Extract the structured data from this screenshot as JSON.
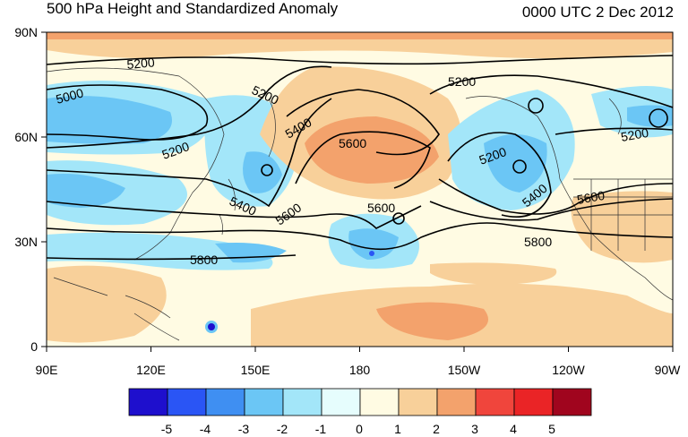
{
  "header": {
    "title": "500 hPa Height and Standardized Anomaly",
    "datetime": "0000 UTC 2 Dec 2012"
  },
  "axes": {
    "lat_ticks": [
      "90N",
      "60N",
      "30N",
      "0"
    ],
    "lon_ticks": [
      "90E",
      "120E",
      "150E",
      "180",
      "150W",
      "120W",
      "90W"
    ]
  },
  "contour_labels": [
    "5200",
    "5000",
    "5200",
    "5200",
    "5400",
    "5600",
    "5400",
    "5600",
    "5600",
    "5800",
    "5200",
    "5200",
    "5400",
    "5600",
    "5800"
  ],
  "colorbar": {
    "labels": [
      "-5",
      "-4",
      "-3",
      "-2",
      "-1",
      "0",
      "1",
      "2",
      "3",
      "4",
      "5"
    ],
    "colors": [
      "#1e0fcd",
      "#2a55f5",
      "#3f8ff2",
      "#6bc6f5",
      "#a3e6f9",
      "#e6fdfd",
      "#fffbe3",
      "#f8d09a",
      "#f3a26c",
      "#f0453c",
      "#ea2426",
      "#a0051e"
    ]
  }
}
